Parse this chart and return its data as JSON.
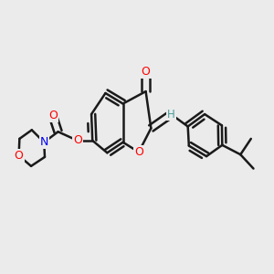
{
  "background_color": "#ebebeb",
  "bond_color": "#1a1a1a",
  "bond_width": 1.8,
  "atom_colors": {
    "O": "#ff0000",
    "N": "#0000ee",
    "H": "#4a9a9a"
  },
  "font_size": 8.5
}
